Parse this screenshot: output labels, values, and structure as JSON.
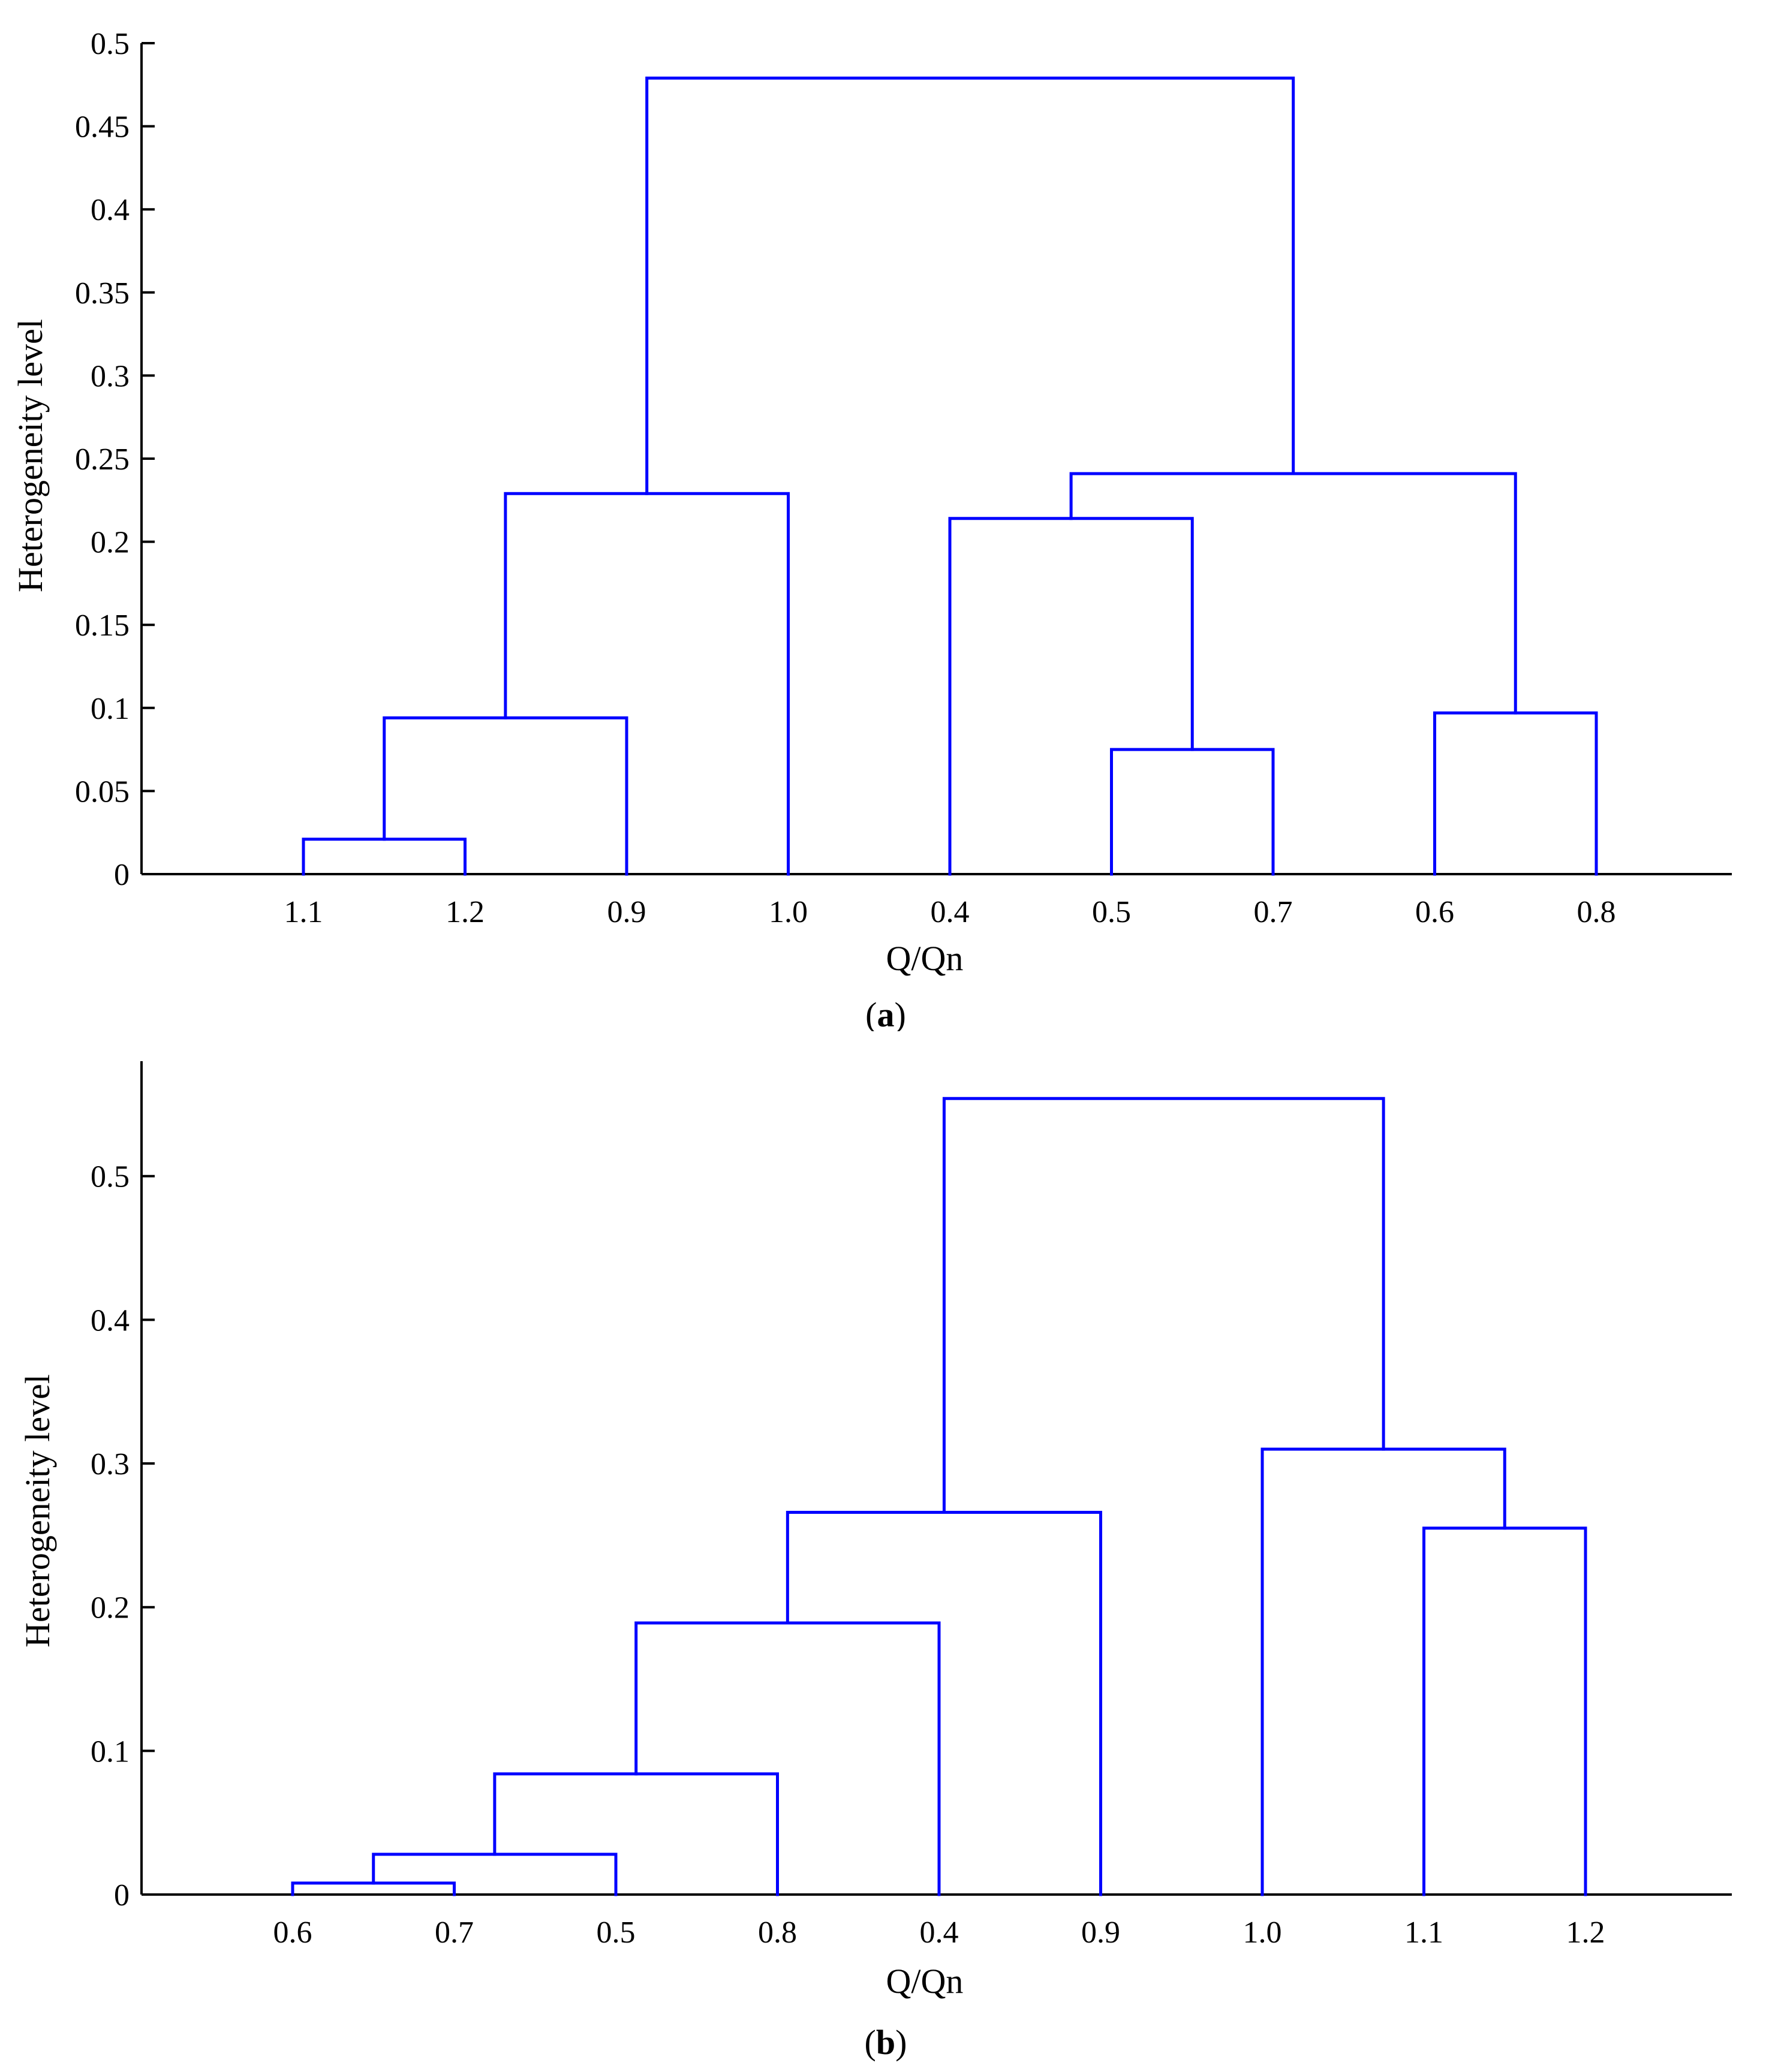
{
  "chart_data": [
    {
      "type": "dendrogram",
      "panel_label": "a",
      "xlabel": "Q/Qn",
      "ylabel": "Heterogeneity level",
      "ylim": [
        0,
        0.5
      ],
      "yticks": [
        "0",
        "0.05",
        "0.1",
        "0.15",
        "0.2",
        "0.25",
        "0.3",
        "0.35",
        "0.4",
        "0.45",
        "0.5"
      ],
      "ytick_values": [
        0,
        0.05,
        0.1,
        0.15,
        0.2,
        0.25,
        0.3,
        0.35,
        0.4,
        0.45,
        0.5
      ],
      "leaves": [
        "1.1",
        "1.2",
        "0.9",
        "1.0",
        "0.4",
        "0.5",
        "0.7",
        "0.6",
        "0.8"
      ],
      "merges": [
        {
          "left": "L0",
          "right": "L1",
          "height": 0.021
        },
        {
          "left": "M0",
          "right": "L2",
          "height": 0.094
        },
        {
          "left": "M1",
          "right": "L3",
          "height": 0.229
        },
        {
          "left": "L5",
          "right": "L6",
          "height": 0.075
        },
        {
          "left": "L4",
          "right": "M3",
          "height": 0.214
        },
        {
          "left": "L7",
          "right": "L8",
          "height": 0.097
        },
        {
          "left": "M4",
          "right": "M5",
          "height": 0.241
        },
        {
          "left": "M2",
          "right": "M6",
          "height": 0.479
        }
      ],
      "line_color": "#0000ff"
    },
    {
      "type": "dendrogram",
      "panel_label": "b",
      "xlabel": "Q/Qn",
      "ylabel": "Heterogeneity level",
      "ylim": [
        0,
        0.58
      ],
      "yticks": [
        "0",
        "0.1",
        "0.2",
        "0.3",
        "0.4",
        "0.5"
      ],
      "ytick_values": [
        0,
        0.1,
        0.2,
        0.3,
        0.4,
        0.5
      ],
      "leaves": [
        "0.6",
        "0.7",
        "0.5",
        "0.8",
        "0.4",
        "0.9",
        "1.0",
        "1.1",
        "1.2"
      ],
      "merges": [
        {
          "left": "L0",
          "right": "L1",
          "height": 0.008
        },
        {
          "left": "M0",
          "right": "L2",
          "height": 0.028
        },
        {
          "left": "M1",
          "right": "L3",
          "height": 0.084
        },
        {
          "left": "M2",
          "right": "L4",
          "height": 0.189
        },
        {
          "left": "M3",
          "right": "L5",
          "height": 0.266
        },
        {
          "left": "L7",
          "right": "L8",
          "height": 0.255
        },
        {
          "left": "L6",
          "right": "M5",
          "height": 0.31
        },
        {
          "left": "M4",
          "right": "M6",
          "height": 0.554
        }
      ],
      "line_color": "#0000ff"
    }
  ]
}
